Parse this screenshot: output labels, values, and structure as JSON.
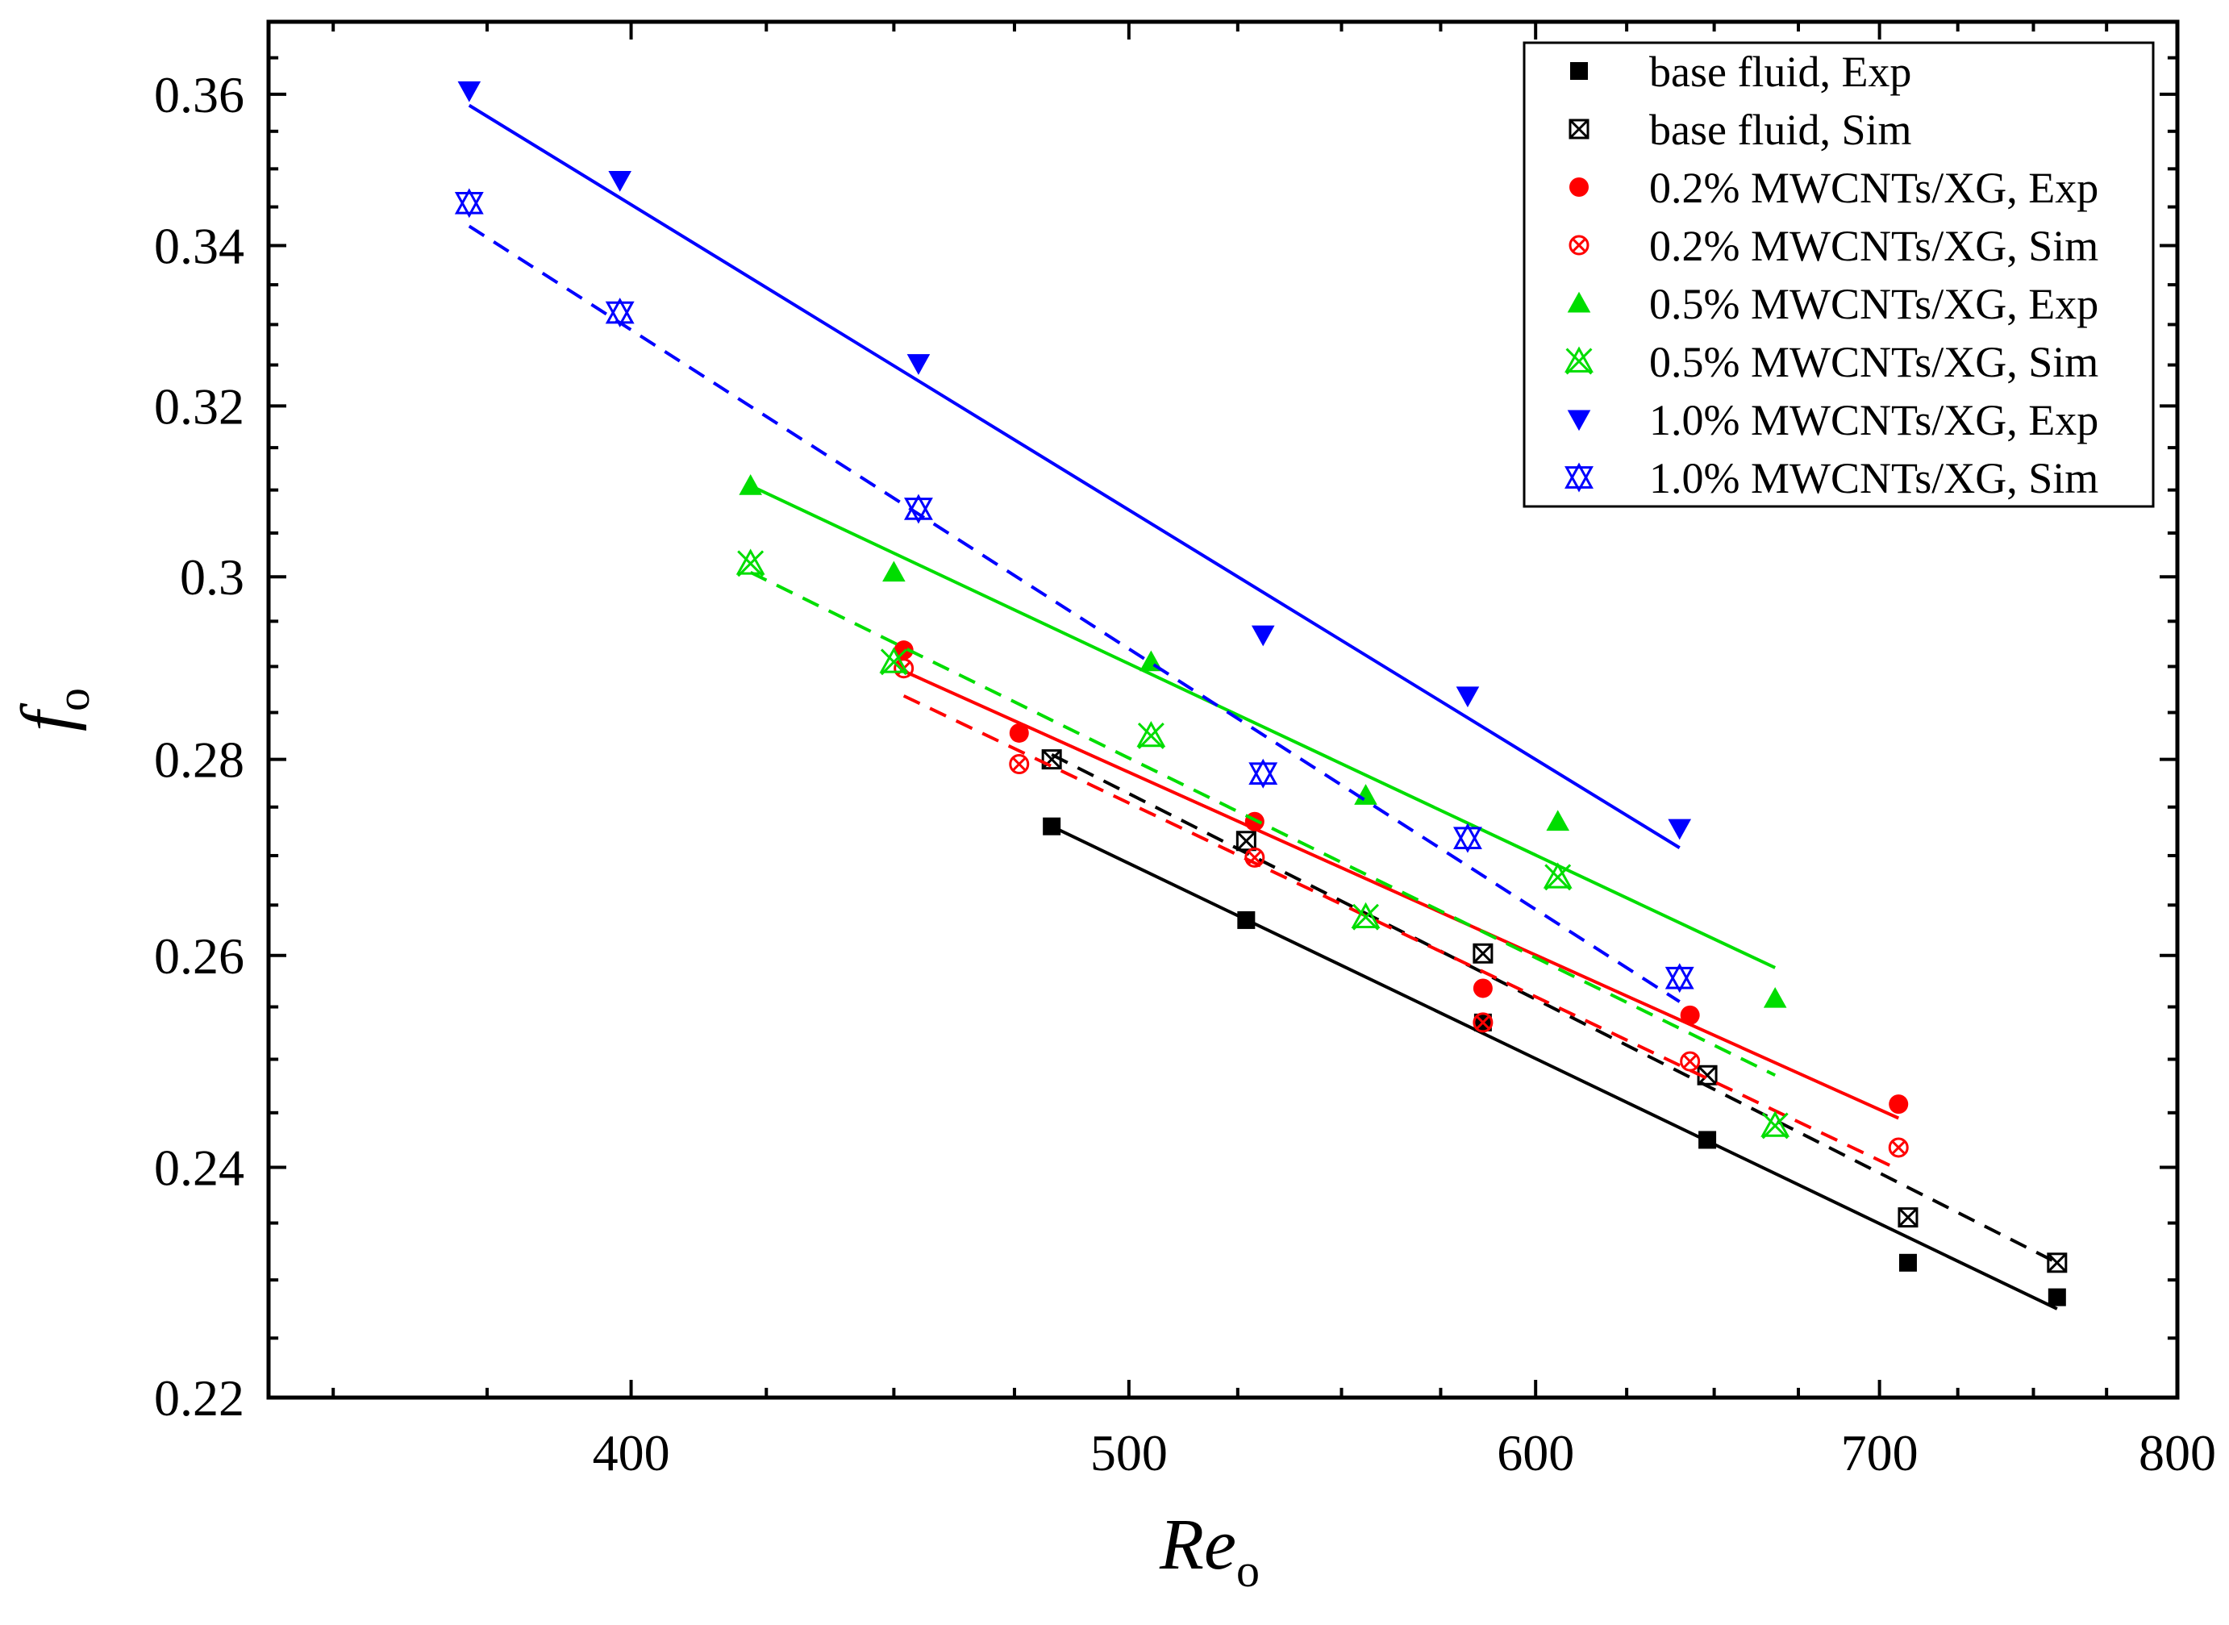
{
  "chart_data": {
    "type": "scatter",
    "title": "",
    "xlabel": {
      "main": "Re",
      "sub": "o"
    },
    "ylabel": {
      "main": "f",
      "sub": "o"
    },
    "x_scale": "log",
    "y_scale": "log",
    "xlim": [
      340,
      800
    ],
    "ylim": [
      0.22,
      0.37
    ],
    "x_ticks": [
      400,
      500,
      600,
      700,
      800
    ],
    "x_tick_labels": [
      "400",
      "500",
      "600",
      "700",
      "800"
    ],
    "y_ticks": [
      0.22,
      0.24,
      0.26,
      0.28,
      0.3,
      0.32,
      0.34,
      0.36
    ],
    "y_tick_labels": [
      "0.22",
      "0.24",
      "0.26",
      "0.28",
      "0.3",
      "0.32",
      "0.34",
      "0.36"
    ],
    "legend_position": "top-right",
    "series": [
      {
        "name": "base fluid, Exp",
        "color": "#000000",
        "marker": "square-filled",
        "line": "solid",
        "x": [
          483,
          527,
          586,
          648,
          709,
          758
        ],
        "y": [
          0.273,
          0.2635,
          0.2535,
          0.2425,
          0.2315,
          0.2285
        ],
        "fit": [
          [
            483,
            0.273
          ],
          [
            758,
            0.2275
          ]
        ]
      },
      {
        "name": "base fluid, Sim",
        "color": "#000000",
        "marker": "square-x",
        "line": "dashed",
        "x": [
          483,
          527,
          586,
          648,
          709,
          758
        ],
        "y": [
          0.28,
          0.2715,
          0.2602,
          0.2485,
          0.2355,
          0.2315
        ],
        "fit": [
          [
            483,
            0.2805
          ],
          [
            758,
            0.2315
          ]
        ]
      },
      {
        "name": "0.2% MWCNTs/XG, Exp",
        "color": "#ff0000",
        "marker": "circle-filled",
        "line": "solid",
        "x": [
          452,
          476,
          529,
          586,
          643,
          706
        ],
        "y": [
          0.2918,
          0.2828,
          0.2735,
          0.2568,
          0.2542,
          0.2458
        ],
        "fit": [
          [
            452,
            0.2895
          ],
          [
            706,
            0.2445
          ]
        ]
      },
      {
        "name": "0.2% MWCNTs/XG, Sim",
        "color": "#ff0000",
        "marker": "circle-x",
        "line": "dashed",
        "x": [
          452,
          476,
          529,
          586,
          643,
          706
        ],
        "y": [
          0.2898,
          0.2795,
          0.2698,
          0.2535,
          0.2498,
          0.2418
        ],
        "fit": [
          [
            452,
            0.2868
          ],
          [
            706,
            0.2398
          ]
        ]
      },
      {
        "name": "0.5% MWCNTs/XG, Exp",
        "color": "#00dd00",
        "marker": "triangle-up-filled",
        "line": "solid",
        "x": [
          422,
          450,
          505,
          556,
          606,
          668
        ],
        "y": [
          0.3105,
          0.3005,
          0.2905,
          0.2762,
          0.2735,
          0.2558
        ],
        "fit": [
          [
            422,
            0.3105
          ],
          [
            668,
            0.2588
          ]
        ]
      },
      {
        "name": "0.5% MWCNTs/XG, Sim",
        "color": "#00dd00",
        "marker": "triangle-x",
        "line": "dashed",
        "x": [
          422,
          450,
          505,
          556,
          606,
          668
        ],
        "y": [
          0.3015,
          0.2905,
          0.2825,
          0.2638,
          0.2678,
          0.2438
        ],
        "fit": [
          [
            422,
            0.3005
          ],
          [
            668,
            0.2485
          ]
        ]
      },
      {
        "name": "1.0% MWCNTs/XG, Exp",
        "color": "#0000ff",
        "marker": "triangle-down-filled",
        "line": "solid",
        "x": [
          372,
          398,
          455,
          531,
          582,
          640
        ],
        "y": [
          0.3605,
          0.3485,
          0.3252,
          0.2935,
          0.2868,
          0.2728
        ],
        "fit": [
          [
            372,
            0.3585
          ],
          [
            640,
            0.2708
          ]
        ]
      },
      {
        "name": "1.0% MWCNTs/XG, Sim",
        "color": "#0000ff",
        "marker": "triangle-xx",
        "line": "dashed",
        "x": [
          372,
          398,
          455,
          531,
          582,
          640
        ],
        "y": [
          0.3455,
          0.3315,
          0.3078,
          0.2785,
          0.2718,
          0.2578
        ],
        "fit": [
          [
            372,
            0.3425
          ],
          [
            640,
            0.2555
          ]
        ]
      }
    ]
  }
}
